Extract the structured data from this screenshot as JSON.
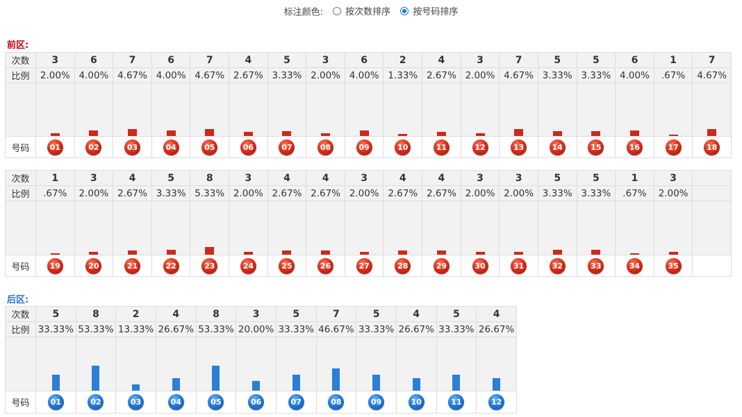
{
  "header": {
    "label": "标注颜色:",
    "options": [
      {
        "label": "按次数排序",
        "checked": false
      },
      {
        "label": "按号码排序",
        "checked": true
      }
    ]
  },
  "front": {
    "title": "前区:",
    "row_labels": {
      "count": "次数",
      "ratio": "比例",
      "number": "号码"
    },
    "groups": [
      {
        "numbers": [
          "01",
          "02",
          "03",
          "04",
          "05",
          "06",
          "07",
          "08",
          "09",
          "10",
          "11",
          "12",
          "13",
          "14",
          "15",
          "16",
          "17",
          "18"
        ],
        "counts": [
          "3",
          "6",
          "7",
          "6",
          "7",
          "4",
          "5",
          "3",
          "6",
          "2",
          "4",
          "3",
          "7",
          "5",
          "5",
          "6",
          "1",
          "7"
        ],
        "ratios": [
          "2.00%",
          "4.00%",
          "4.67%",
          "4.00%",
          "4.67%",
          "2.67%",
          "3.33%",
          "2.00%",
          "4.00%",
          "1.33%",
          "2.67%",
          "2.00%",
          "4.67%",
          "3.33%",
          "3.33%",
          "4.00%",
          ".67%",
          "4.67%"
        ]
      },
      {
        "numbers": [
          "19",
          "20",
          "21",
          "22",
          "23",
          "24",
          "25",
          "26",
          "27",
          "28",
          "29",
          "30",
          "31",
          "32",
          "33",
          "34",
          "35"
        ],
        "counts": [
          "1",
          "3",
          "4",
          "5",
          "8",
          "3",
          "4",
          "4",
          "3",
          "4",
          "4",
          "3",
          "3",
          "5",
          "5",
          "1",
          "3"
        ],
        "ratios": [
          ".67%",
          "2.00%",
          "2.67%",
          "3.33%",
          "5.33%",
          "2.00%",
          "2.67%",
          "2.67%",
          "2.00%",
          "2.67%",
          "2.67%",
          "2.00%",
          "2.00%",
          "3.33%",
          "3.33%",
          ".67%",
          "2.00%"
        ]
      }
    ]
  },
  "back": {
    "title": "后区:",
    "row_labels": {
      "count": "次数",
      "ratio": "比例",
      "number": "号码"
    },
    "numbers": [
      "01",
      "02",
      "03",
      "04",
      "05",
      "06",
      "07",
      "08",
      "09",
      "10",
      "11",
      "12"
    ],
    "counts": [
      "5",
      "8",
      "2",
      "4",
      "8",
      "3",
      "5",
      "7",
      "5",
      "4",
      "5",
      "4"
    ],
    "ratios": [
      "33.33%",
      "53.33%",
      "13.33%",
      "26.67%",
      "53.33%",
      "20.00%",
      "33.33%",
      "46.67%",
      "33.33%",
      "26.67%",
      "33.33%",
      "26.67%"
    ]
  },
  "colors": {
    "front_ball": "#d8301c",
    "back_ball": "#2479d3",
    "front_title": "#c4000f",
    "back_title": "#2673c9"
  }
}
